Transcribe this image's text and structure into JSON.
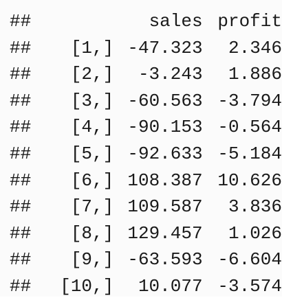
{
  "output": {
    "prefix": "##",
    "headers": {
      "index": "",
      "sales": "sales",
      "profit": "profit"
    },
    "rows": [
      {
        "index": "[1,]",
        "sales": "-47.323",
        "profit": "2.346"
      },
      {
        "index": "[2,]",
        "sales": "-3.243",
        "profit": "1.886"
      },
      {
        "index": "[3,]",
        "sales": "-60.563",
        "profit": "-3.794"
      },
      {
        "index": "[4,]",
        "sales": "-90.153",
        "profit": "-0.564"
      },
      {
        "index": "[5,]",
        "sales": "-92.633",
        "profit": "-5.184"
      },
      {
        "index": "[6,]",
        "sales": "108.387",
        "profit": "10.626"
      },
      {
        "index": "[7,]",
        "sales": "109.587",
        "profit": "3.836"
      },
      {
        "index": "[8,]",
        "sales": "129.457",
        "profit": "1.026"
      },
      {
        "index": "[9,]",
        "sales": "-63.593",
        "profit": "-6.604"
      },
      {
        "index": "[10,]",
        "sales": "10.077",
        "profit": "-3.574"
      }
    ]
  }
}
